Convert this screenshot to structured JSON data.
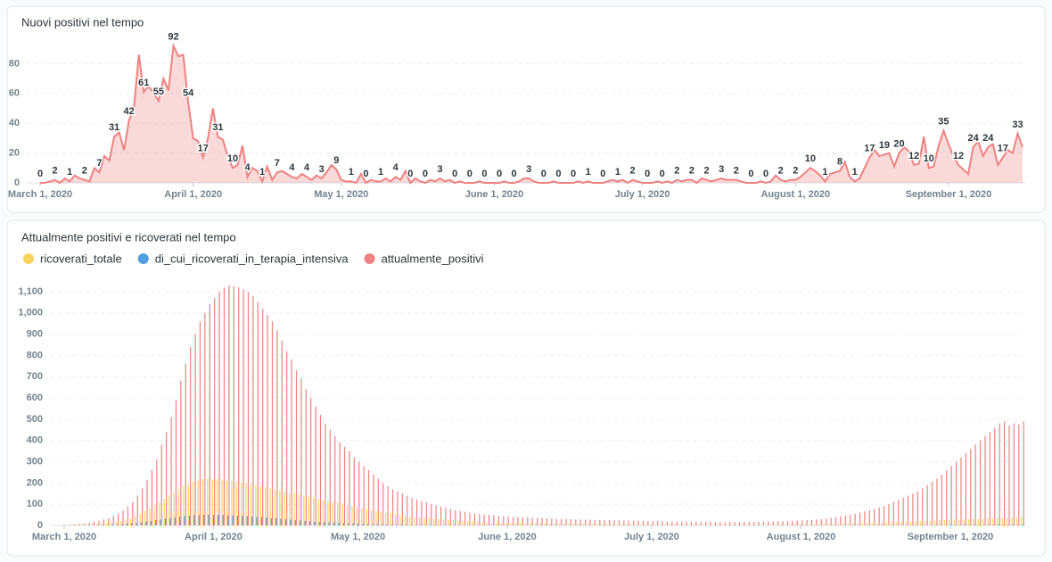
{
  "chart_data": [
    {
      "type": "area",
      "title": "Nuovi positivi nel tempo",
      "color": "#ed8281",
      "grid": true,
      "xlim": [
        0,
        199
      ],
      "xticks": [
        {
          "value": 0,
          "label": "March 1, 2020"
        },
        {
          "value": 31,
          "label": "April 1, 2020"
        },
        {
          "value": 61,
          "label": "May 1, 2020"
        },
        {
          "value": 92,
          "label": "June 1, 2020"
        },
        {
          "value": 122,
          "label": "July 1, 2020"
        },
        {
          "value": 153,
          "label": "August 1, 2020"
        },
        {
          "value": 184,
          "label": "September 1, 2020"
        }
      ],
      "ylim": [
        0,
        100
      ],
      "yticks": [
        0,
        20,
        40,
        60,
        80
      ],
      "values": [
        0,
        0,
        1,
        2,
        0,
        3,
        1,
        5,
        3,
        2,
        1,
        10,
        7,
        18,
        15,
        31,
        34,
        22,
        42,
        50,
        86,
        61,
        65,
        60,
        55,
        70,
        62,
        92,
        85,
        86,
        54,
        30,
        28,
        17,
        30,
        50,
        31,
        29,
        18,
        10,
        12,
        25,
        4,
        10,
        8,
        1,
        11,
        2,
        7,
        8,
        6,
        4,
        3,
        6,
        4,
        2,
        5,
        3,
        7,
        12,
        9,
        2,
        1,
        1,
        0,
        6,
        0,
        2,
        1,
        1,
        3,
        1,
        4,
        2,
        8,
        0,
        3,
        1,
        0,
        2,
        1,
        3,
        1,
        2,
        0,
        1,
        0,
        0,
        0,
        1,
        0,
        0,
        0,
        0,
        1,
        0,
        0,
        1,
        3,
        3,
        1,
        0,
        0,
        0,
        1,
        0,
        0,
        0,
        0,
        1,
        0,
        1,
        0,
        0,
        0,
        1,
        2,
        1,
        2,
        0,
        2,
        1,
        0,
        0,
        0,
        1,
        0,
        1,
        0,
        2,
        1,
        2,
        2,
        0,
        3,
        2,
        1,
        2,
        3,
        2,
        2,
        2,
        1,
        0,
        0,
        0,
        1,
        0,
        1,
        5,
        2,
        1,
        2,
        2,
        4,
        7,
        10,
        8,
        5,
        1,
        6,
        7,
        8,
        14,
        4,
        1,
        3,
        10,
        17,
        22,
        18,
        19,
        20,
        11,
        20,
        24,
        21,
        12,
        13,
        31,
        10,
        11,
        25,
        35,
        26,
        18,
        12,
        9,
        6,
        24,
        28,
        18,
        24,
        26,
        12,
        17,
        22,
        20,
        33,
        24
      ]
    },
    {
      "type": "bar",
      "title": "Attualmente positivi e ricoverati nel tempo",
      "grid": true,
      "xlim": [
        0,
        199
      ],
      "xticks": [
        {
          "value": 0,
          "label": "March 1, 2020"
        },
        {
          "value": 31,
          "label": "April 1, 2020"
        },
        {
          "value": 61,
          "label": "May 1, 2020"
        },
        {
          "value": 92,
          "label": "June 1, 2020"
        },
        {
          "value": 122,
          "label": "July 1, 2020"
        },
        {
          "value": 153,
          "label": "August 1, 2020"
        },
        {
          "value": 184,
          "label": "September 1, 2020"
        }
      ],
      "ylim": [
        0,
        1150
      ],
      "yticks": [
        0,
        100,
        200,
        300,
        400,
        500,
        600,
        700,
        800,
        900,
        {
          "value": 1000,
          "label": "1,000"
        },
        {
          "value": 1100,
          "label": "1,100"
        }
      ],
      "series": [
        {
          "name": "ricoverati_totale",
          "color": "#f9d45c",
          "values": [
            1,
            1,
            2,
            3,
            4,
            5,
            6,
            8,
            10,
            12,
            15,
            18,
            22,
            28,
            35,
            45,
            55,
            68,
            80,
            95,
            110,
            125,
            140,
            155,
            170,
            185,
            195,
            205,
            212,
            218,
            222,
            220,
            218,
            215,
            212,
            208,
            205,
            200,
            198,
            195,
            190,
            185,
            180,
            175,
            170,
            165,
            160,
            155,
            150,
            145,
            140,
            135,
            130,
            125,
            120,
            115,
            110,
            105,
            100,
            95,
            90,
            85,
            80,
            76,
            72,
            68,
            64,
            60,
            56,
            52,
            48,
            45,
            42,
            40,
            38,
            36,
            34,
            32,
            30,
            28,
            26,
            24,
            22,
            21,
            20,
            19,
            18,
            17,
            16,
            15,
            14,
            14,
            13,
            13,
            12,
            12,
            11,
            11,
            10,
            10,
            10,
            9,
            9,
            9,
            8,
            8,
            8,
            7,
            7,
            7,
            7,
            6,
            6,
            6,
            6,
            5,
            5,
            5,
            5,
            5,
            5,
            4,
            4,
            4,
            4,
            4,
            4,
            4,
            4,
            4,
            3,
            3,
            3,
            3,
            3,
            3,
            3,
            3,
            3,
            3,
            3,
            3,
            3,
            3,
            3,
            3,
            3,
            4,
            4,
            4,
            4,
            4,
            5,
            5,
            5,
            5,
            6,
            6,
            6,
            7,
            7,
            8,
            8,
            9,
            9,
            10,
            10,
            11,
            12,
            12,
            13,
            14,
            15,
            16,
            16,
            17,
            18,
            19,
            20,
            21,
            22,
            23,
            24,
            25,
            26,
            27,
            28,
            29,
            30,
            30,
            31,
            32,
            33,
            34,
            35,
            36,
            36,
            37,
            38,
            39
          ]
        },
        {
          "name": "di_cui_ricoverati_in_terapia_intensiva",
          "color": "#509ee3",
          "values": [
            0,
            0,
            0,
            1,
            1,
            1,
            2,
            2,
            3,
            3,
            4,
            5,
            6,
            8,
            10,
            12,
            15,
            18,
            21,
            25,
            28,
            32,
            35,
            38,
            41,
            44,
            46,
            48,
            49,
            50,
            51,
            50,
            50,
            49,
            48,
            47,
            46,
            45,
            44,
            42,
            40,
            39,
            37,
            35,
            33,
            31,
            29,
            27,
            25,
            23,
            21,
            19,
            17,
            16,
            15,
            14,
            13,
            12,
            11,
            10,
            9,
            8,
            7,
            7,
            6,
            6,
            5,
            5,
            4,
            4,
            4,
            3,
            3,
            3,
            3,
            2,
            2,
            2,
            2,
            2,
            2,
            2,
            1,
            1,
            1,
            1,
            1,
            1,
            1,
            1,
            1,
            1,
            1,
            1,
            1,
            1,
            1,
            1,
            1,
            1,
            1,
            1,
            1,
            1,
            1,
            1,
            0,
            1,
            0,
            1,
            0,
            1,
            0,
            0,
            1,
            0,
            0,
            1,
            0,
            0,
            0,
            0,
            0,
            0,
            0,
            0,
            0,
            0,
            0,
            0,
            0,
            0,
            0,
            0,
            0,
            0,
            0,
            0,
            0,
            0,
            0,
            0,
            0,
            0,
            0,
            0,
            0,
            0,
            0,
            0,
            0,
            0,
            0,
            0,
            0,
            0,
            0,
            0,
            0,
            0,
            0,
            0,
            0,
            0,
            1,
            0,
            0,
            1,
            0,
            1,
            1,
            0,
            1,
            1,
            1,
            1,
            1,
            1,
            2,
            1,
            2,
            2,
            2,
            2,
            2,
            2,
            3,
            3,
            3,
            3,
            3,
            3,
            3,
            4,
            4,
            4,
            4,
            4,
            4,
            4
          ]
        },
        {
          "name": "attualmente_positivi",
          "color": "#ed8281",
          "values": [
            2,
            3,
            5,
            8,
            10,
            14,
            18,
            22,
            28,
            35,
            45,
            55,
            70,
            90,
            110,
            140,
            175,
            215,
            260,
            310,
            380,
            440,
            510,
            590,
            680,
            760,
            840,
            900,
            960,
            1000,
            1040,
            1070,
            1100,
            1120,
            1130,
            1125,
            1120,
            1110,
            1100,
            1080,
            1050,
            1020,
            990,
            960,
            920,
            870,
            820,
            780,
            730,
            690,
            640,
            600,
            560,
            520,
            480,
            450,
            420,
            390,
            370,
            350,
            320,
            300,
            280,
            260,
            240,
            220,
            200,
            185,
            170,
            160,
            150,
            140,
            130,
            122,
            115,
            108,
            100,
            94,
            88,
            82,
            76,
            72,
            68,
            64,
            60,
            56,
            54,
            52,
            50,
            48,
            46,
            44,
            42,
            40,
            39,
            38,
            37,
            36,
            35,
            34,
            33,
            32,
            31,
            30,
            30,
            29,
            28,
            28,
            27,
            27,
            26,
            26,
            25,
            25,
            24,
            24,
            23,
            23,
            22,
            22,
            21,
            21,
            20,
            20,
            19,
            19,
            19,
            18,
            18,
            18,
            18,
            17,
            17,
            17,
            17,
            16,
            16,
            16,
            16,
            16,
            16,
            16,
            17,
            17,
            18,
            18,
            19,
            19,
            20,
            20,
            21,
            22,
            23,
            24,
            25,
            26,
            28,
            30,
            32,
            35,
            38,
            42,
            46,
            50,
            55,
            60,
            66,
            72,
            78,
            85,
            92,
            100,
            110,
            120,
            130,
            140,
            150,
            160,
            175,
            190,
            205,
            220,
            240,
            260,
            280,
            300,
            320,
            340,
            360,
            380,
            400,
            420,
            440,
            460,
            480,
            490,
            470,
            480,
            475,
            490
          ]
        }
      ]
    }
  ]
}
